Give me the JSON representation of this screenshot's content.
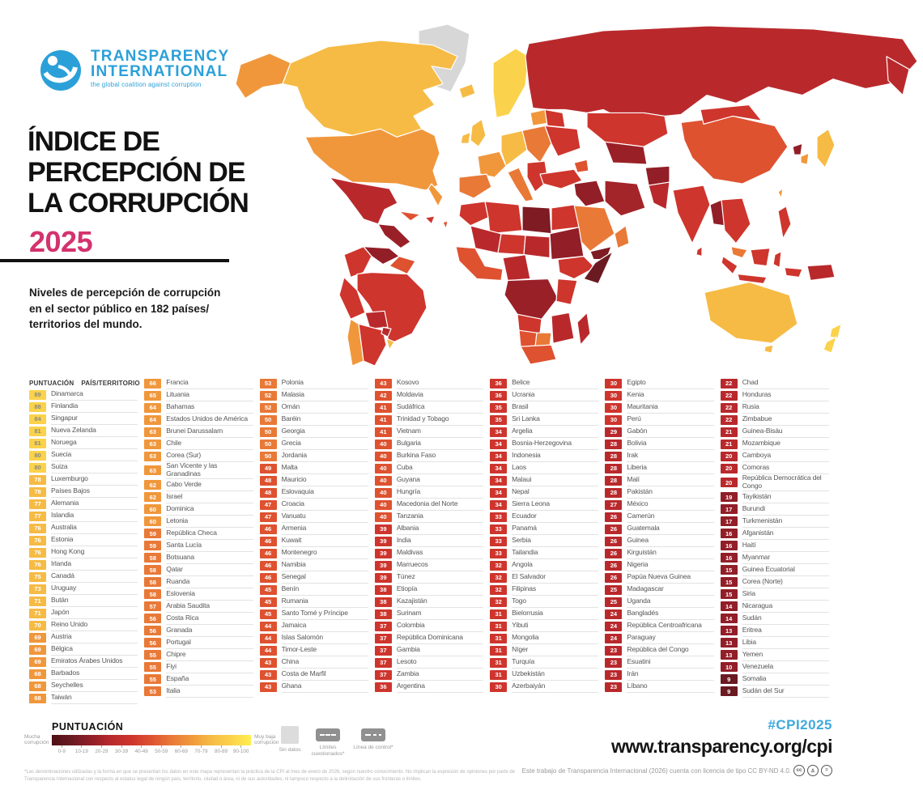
{
  "logo": {
    "line1": "TRANSPARENCY",
    "line2": "INTERNATIONAL",
    "tagline": "the global coalition against corruption"
  },
  "header": {
    "title_lines": [
      "ÍNDICE DE",
      "PERCEPCIÓN DE",
      "LA CORRUPCIÓN"
    ],
    "year": "2025",
    "subtitle_lines": [
      "Niveles de percepción de corrupción",
      "en el sector público en 182 países/",
      "territorios del mundo."
    ]
  },
  "table": {
    "header_score": "PUNTUACIÓN",
    "header_country": "PAÍS/TERRITORIO"
  },
  "legend": {
    "title": "PUNTUACIÓN",
    "left_label": "Mucha corrupción",
    "right_label": "Muy baja corrupción",
    "ticks": [
      "0-9",
      "10-19",
      "20-29",
      "30-39",
      "40-49",
      "50-59",
      "60-69",
      "70-79",
      "80-89",
      "90-100"
    ],
    "no_data": "Sin datos",
    "disputed": "Límites cuestionados*",
    "control": "Línea de control*"
  },
  "footer": {
    "hashtag": "#CPI2025",
    "url": "www.transparency.org/cpi",
    "license": "Este trabajo de Transparencia Internacional (2026) cuenta con licencia de tipo CC BY-ND 4.0.",
    "disclaimer": "*Las denominaciones utilizadas y la forma en que se presentan los datos en este mapa representan la práctica de la CPI al mes de enero de 2026, según nuestro conocimiento. No implican la expresión de opiniones por parte de Transparencia Internacional con respecto al estatus legal de ningún país, territorio, ciudad o área, ni de sus autoridades, ni tampoco respecto a la delimitación de sus fronteras o límites."
  },
  "colors": {
    "accent_pink": "#D4326E",
    "accent_blue": "#3FA9DC",
    "logo_blue": "#2BA0D8",
    "no_data": "#D7D7D7",
    "chip_text_dark": "#8a8a7a",
    "bin_colors": [
      "#6B1A22",
      "#921E28",
      "#B9292C",
      "#CE352D",
      "#DE5230",
      "#E97937",
      "#F0973C",
      "#F6BB45",
      "#FBD24B",
      "#F9E94E"
    ],
    "gradient": [
      "#4E1016",
      "#6B1A22",
      "#921E28",
      "#B9292C",
      "#CE352D",
      "#DE5230",
      "#E97937",
      "#F0973C",
      "#F6BB45",
      "#FBD24B",
      "#FFEF4F"
    ]
  },
  "chart_data": {
    "type": "choropleth_map_and_ranked_table",
    "title": "Índice de Percepción de la Corrupción 2025",
    "subtitle": "Niveles de percepción de corrupción en el sector público en 182 países/territorios del mundo.",
    "score_range": [
      0,
      100
    ],
    "legend_bins": [
      "0-9",
      "10-19",
      "20-29",
      "30-39",
      "40-49",
      "50-59",
      "60-69",
      "70-79",
      "80-89",
      "90-100"
    ],
    "columns": [
      [
        {
          "s": 89,
          "n": "Dinamarca"
        },
        {
          "s": 88,
          "n": "Finlandia"
        },
        {
          "s": 84,
          "n": "Singapur"
        },
        {
          "s": 81,
          "n": "Nueva Zelanda"
        },
        {
          "s": 81,
          "n": "Noruega"
        },
        {
          "s": 80,
          "n": "Suecia"
        },
        {
          "s": 80,
          "n": "Suiza"
        },
        {
          "s": 78,
          "n": "Luxemburgo"
        },
        {
          "s": 78,
          "n": "Países Bajos"
        },
        {
          "s": 77,
          "n": "Alemania"
        },
        {
          "s": 77,
          "n": "Islandia"
        },
        {
          "s": 76,
          "n": "Australia"
        },
        {
          "s": 76,
          "n": "Estonia"
        },
        {
          "s": 76,
          "n": "Hong Kong"
        },
        {
          "s": 76,
          "n": "Irlanda"
        },
        {
          "s": 75,
          "n": "Canadá"
        },
        {
          "s": 73,
          "n": "Uruguay"
        },
        {
          "s": 71,
          "n": "Bután"
        },
        {
          "s": 71,
          "n": "Japón"
        },
        {
          "s": 70,
          "n": "Reino Unido"
        },
        {
          "s": 69,
          "n": "Austria"
        },
        {
          "s": 69,
          "n": "Bélgica"
        },
        {
          "s": 69,
          "n": "Emiratos Árabes Unidos"
        },
        {
          "s": 68,
          "n": "Barbados"
        },
        {
          "s": 68,
          "n": "Seychelles"
        },
        {
          "s": 68,
          "n": "Taiwán"
        }
      ],
      [
        {
          "s": 66,
          "n": "Francia"
        },
        {
          "s": 65,
          "n": "Lituania"
        },
        {
          "s": 64,
          "n": "Bahamas"
        },
        {
          "s": 64,
          "n": "Estados Unidos de América"
        },
        {
          "s": 63,
          "n": "Brunei Darussalam"
        },
        {
          "s": 63,
          "n": "Chile"
        },
        {
          "s": 63,
          "n": "Corea (Sur)"
        },
        {
          "s": 63,
          "n": "San Vicente y las Granadinas"
        },
        {
          "s": 62,
          "n": "Cabo Verde"
        },
        {
          "s": 62,
          "n": "Israel"
        },
        {
          "s": 60,
          "n": "Dominica"
        },
        {
          "s": 60,
          "n": "Letonia"
        },
        {
          "s": 59,
          "n": "República Checa"
        },
        {
          "s": 59,
          "n": "Santa Lucía"
        },
        {
          "s": 58,
          "n": "Botsuana"
        },
        {
          "s": 58,
          "n": "Qatar"
        },
        {
          "s": 58,
          "n": "Ruanda"
        },
        {
          "s": 58,
          "n": "Eslovenia"
        },
        {
          "s": 57,
          "n": "Arabia Saudita"
        },
        {
          "s": 56,
          "n": "Costa Rica"
        },
        {
          "s": 56,
          "n": "Granada"
        },
        {
          "s": 56,
          "n": "Portugal"
        },
        {
          "s": 55,
          "n": "Chipre"
        },
        {
          "s": 55,
          "n": "Fiyi"
        },
        {
          "s": 55,
          "n": "España"
        },
        {
          "s": 53,
          "n": "Italia"
        }
      ],
      [
        {
          "s": 53,
          "n": "Polonia"
        },
        {
          "s": 52,
          "n": "Malasia"
        },
        {
          "s": 52,
          "n": "Omán"
        },
        {
          "s": 50,
          "n": "Baréin"
        },
        {
          "s": 50,
          "n": "Georgia"
        },
        {
          "s": 50,
          "n": "Grecia"
        },
        {
          "s": 50,
          "n": "Jordania"
        },
        {
          "s": 49,
          "n": "Malta"
        },
        {
          "s": 48,
          "n": "Mauricio"
        },
        {
          "s": 48,
          "n": "Eslovaquia"
        },
        {
          "s": 47,
          "n": "Croacia"
        },
        {
          "s": 47,
          "n": "Vanuatu"
        },
        {
          "s": 46,
          "n": "Armenia"
        },
        {
          "s": 46,
          "n": "Kuwait"
        },
        {
          "s": 46,
          "n": "Montenegro"
        },
        {
          "s": 46,
          "n": "Namibia"
        },
        {
          "s": 46,
          "n": "Senegal"
        },
        {
          "s": 45,
          "n": "Benín"
        },
        {
          "s": 45,
          "n": "Rumania"
        },
        {
          "s": 45,
          "n": "Santo Tomé y Príncipe"
        },
        {
          "s": 44,
          "n": "Jamaica"
        },
        {
          "s": 44,
          "n": "Islas Salomón"
        },
        {
          "s": 44,
          "n": "Timor-Leste"
        },
        {
          "s": 43,
          "n": "China"
        },
        {
          "s": 43,
          "n": "Costa de Marfil"
        },
        {
          "s": 43,
          "n": "Ghana"
        }
      ],
      [
        {
          "s": 43,
          "n": "Kosovo"
        },
        {
          "s": 42,
          "n": "Moldavia"
        },
        {
          "s": 41,
          "n": "Sudáfrica"
        },
        {
          "s": 41,
          "n": "Trinidad y Tobago"
        },
        {
          "s": 41,
          "n": "Vietnam"
        },
        {
          "s": 40,
          "n": "Bulgaria"
        },
        {
          "s": 40,
          "n": "Burkina Faso"
        },
        {
          "s": 40,
          "n": "Cuba"
        },
        {
          "s": 40,
          "n": "Guyana"
        },
        {
          "s": 40,
          "n": "Hungría"
        },
        {
          "s": 40,
          "n": "Macedonia del Norte"
        },
        {
          "s": 40,
          "n": "Tanzania"
        },
        {
          "s": 39,
          "n": "Albania"
        },
        {
          "s": 39,
          "n": "India"
        },
        {
          "s": 39,
          "n": "Maldivas"
        },
        {
          "s": 39,
          "n": "Marruecos"
        },
        {
          "s": 39,
          "n": "Túnez"
        },
        {
          "s": 38,
          "n": "Etiopía"
        },
        {
          "s": 38,
          "n": "Kazajistán"
        },
        {
          "s": 38,
          "n": "Surinam"
        },
        {
          "s": 37,
          "n": "Colombia"
        },
        {
          "s": 37,
          "n": "República Dominicana"
        },
        {
          "s": 37,
          "n": "Gambia"
        },
        {
          "s": 37,
          "n": "Lesoto"
        },
        {
          "s": 37,
          "n": "Zambia"
        },
        {
          "s": 36,
          "n": "Argentina"
        }
      ],
      [
        {
          "s": 36,
          "n": "Belice"
        },
        {
          "s": 36,
          "n": "Ucrania"
        },
        {
          "s": 35,
          "n": "Brasil"
        },
        {
          "s": 35,
          "n": "Sri Lanka"
        },
        {
          "s": 34,
          "n": "Argelia"
        },
        {
          "s": 34,
          "n": "Bosnia-Herzegovina"
        },
        {
          "s": 34,
          "n": "Indonesia"
        },
        {
          "s": 34,
          "n": "Laos"
        },
        {
          "s": 34,
          "n": "Malaui"
        },
        {
          "s": 34,
          "n": "Nepal"
        },
        {
          "s": 34,
          "n": "Sierra Leona"
        },
        {
          "s": 33,
          "n": "Ecuador"
        },
        {
          "s": 33,
          "n": "Panamá"
        },
        {
          "s": 33,
          "n": "Serbia"
        },
        {
          "s": 33,
          "n": "Tailandia"
        },
        {
          "s": 32,
          "n": "Angola"
        },
        {
          "s": 32,
          "n": "El Salvador"
        },
        {
          "s": 32,
          "n": "Filipinas"
        },
        {
          "s": 32,
          "n": "Togo"
        },
        {
          "s": 31,
          "n": "Bielorrusia"
        },
        {
          "s": 31,
          "n": "Yibuti"
        },
        {
          "s": 31,
          "n": "Mongolia"
        },
        {
          "s": 31,
          "n": "Níger"
        },
        {
          "s": 31,
          "n": "Turquía"
        },
        {
          "s": 31,
          "n": "Uzbekistán"
        },
        {
          "s": 30,
          "n": "Azerbaiyán"
        }
      ],
      [
        {
          "s": 30,
          "n": "Egipto"
        },
        {
          "s": 30,
          "n": "Kenia"
        },
        {
          "s": 30,
          "n": "Mauritania"
        },
        {
          "s": 30,
          "n": "Perú"
        },
        {
          "s": 29,
          "n": "Gabón"
        },
        {
          "s": 28,
          "n": "Bolivia"
        },
        {
          "s": 28,
          "n": "Irak"
        },
        {
          "s": 28,
          "n": "Liberia"
        },
        {
          "s": 28,
          "n": "Malí"
        },
        {
          "s": 28,
          "n": "Pakistán"
        },
        {
          "s": 27,
          "n": "México"
        },
        {
          "s": 26,
          "n": "Camerún"
        },
        {
          "s": 26,
          "n": "Guatemala"
        },
        {
          "s": 26,
          "n": "Guinea"
        },
        {
          "s": 26,
          "n": "Kirguistán"
        },
        {
          "s": 26,
          "n": "Nigeria"
        },
        {
          "s": 26,
          "n": "Papúa Nueva Guinea"
        },
        {
          "s": 25,
          "n": "Madagascar"
        },
        {
          "s": 25,
          "n": "Uganda"
        },
        {
          "s": 24,
          "n": "Bangladés"
        },
        {
          "s": 24,
          "n": "República Centroafricana"
        },
        {
          "s": 24,
          "n": "Paraguay"
        },
        {
          "s": 23,
          "n": "República del Congo"
        },
        {
          "s": 23,
          "n": "Esuatini"
        },
        {
          "s": 23,
          "n": "Irán"
        },
        {
          "s": 23,
          "n": "Líbano"
        }
      ],
      [
        {
          "s": 22,
          "n": "Chad"
        },
        {
          "s": 22,
          "n": "Honduras"
        },
        {
          "s": 22,
          "n": "Rusia"
        },
        {
          "s": 22,
          "n": "Zimbabue"
        },
        {
          "s": 21,
          "n": "Guinea-Bisáu"
        },
        {
          "s": 21,
          "n": "Mozambique"
        },
        {
          "s": 20,
          "n": "Camboya"
        },
        {
          "s": 20,
          "n": "Comoras"
        },
        {
          "s": 20,
          "n": "República Democrática del Congo"
        },
        {
          "s": 19,
          "n": "Tayikistán"
        },
        {
          "s": 17,
          "n": "Burundi"
        },
        {
          "s": 17,
          "n": "Turkmenistán"
        },
        {
          "s": 16,
          "n": "Afganistán"
        },
        {
          "s": 16,
          "n": "Haití"
        },
        {
          "s": 16,
          "n": "Myanmar"
        },
        {
          "s": 15,
          "n": "Guinea Ecuatorial"
        },
        {
          "s": 15,
          "n": "Corea (Norte)"
        },
        {
          "s": 15,
          "n": "Siria"
        },
        {
          "s": 14,
          "n": "Nicaragua"
        },
        {
          "s": 14,
          "n": "Sudán"
        },
        {
          "s": 13,
          "n": "Eritrea"
        },
        {
          "s": 13,
          "n": "Libia"
        },
        {
          "s": 13,
          "n": "Yemen"
        },
        {
          "s": 10,
          "n": "Venezuela"
        },
        {
          "s": 9,
          "n": "Somalia"
        },
        {
          "s": 9,
          "n": "Sudán del Sur"
        }
      ]
    ]
  }
}
